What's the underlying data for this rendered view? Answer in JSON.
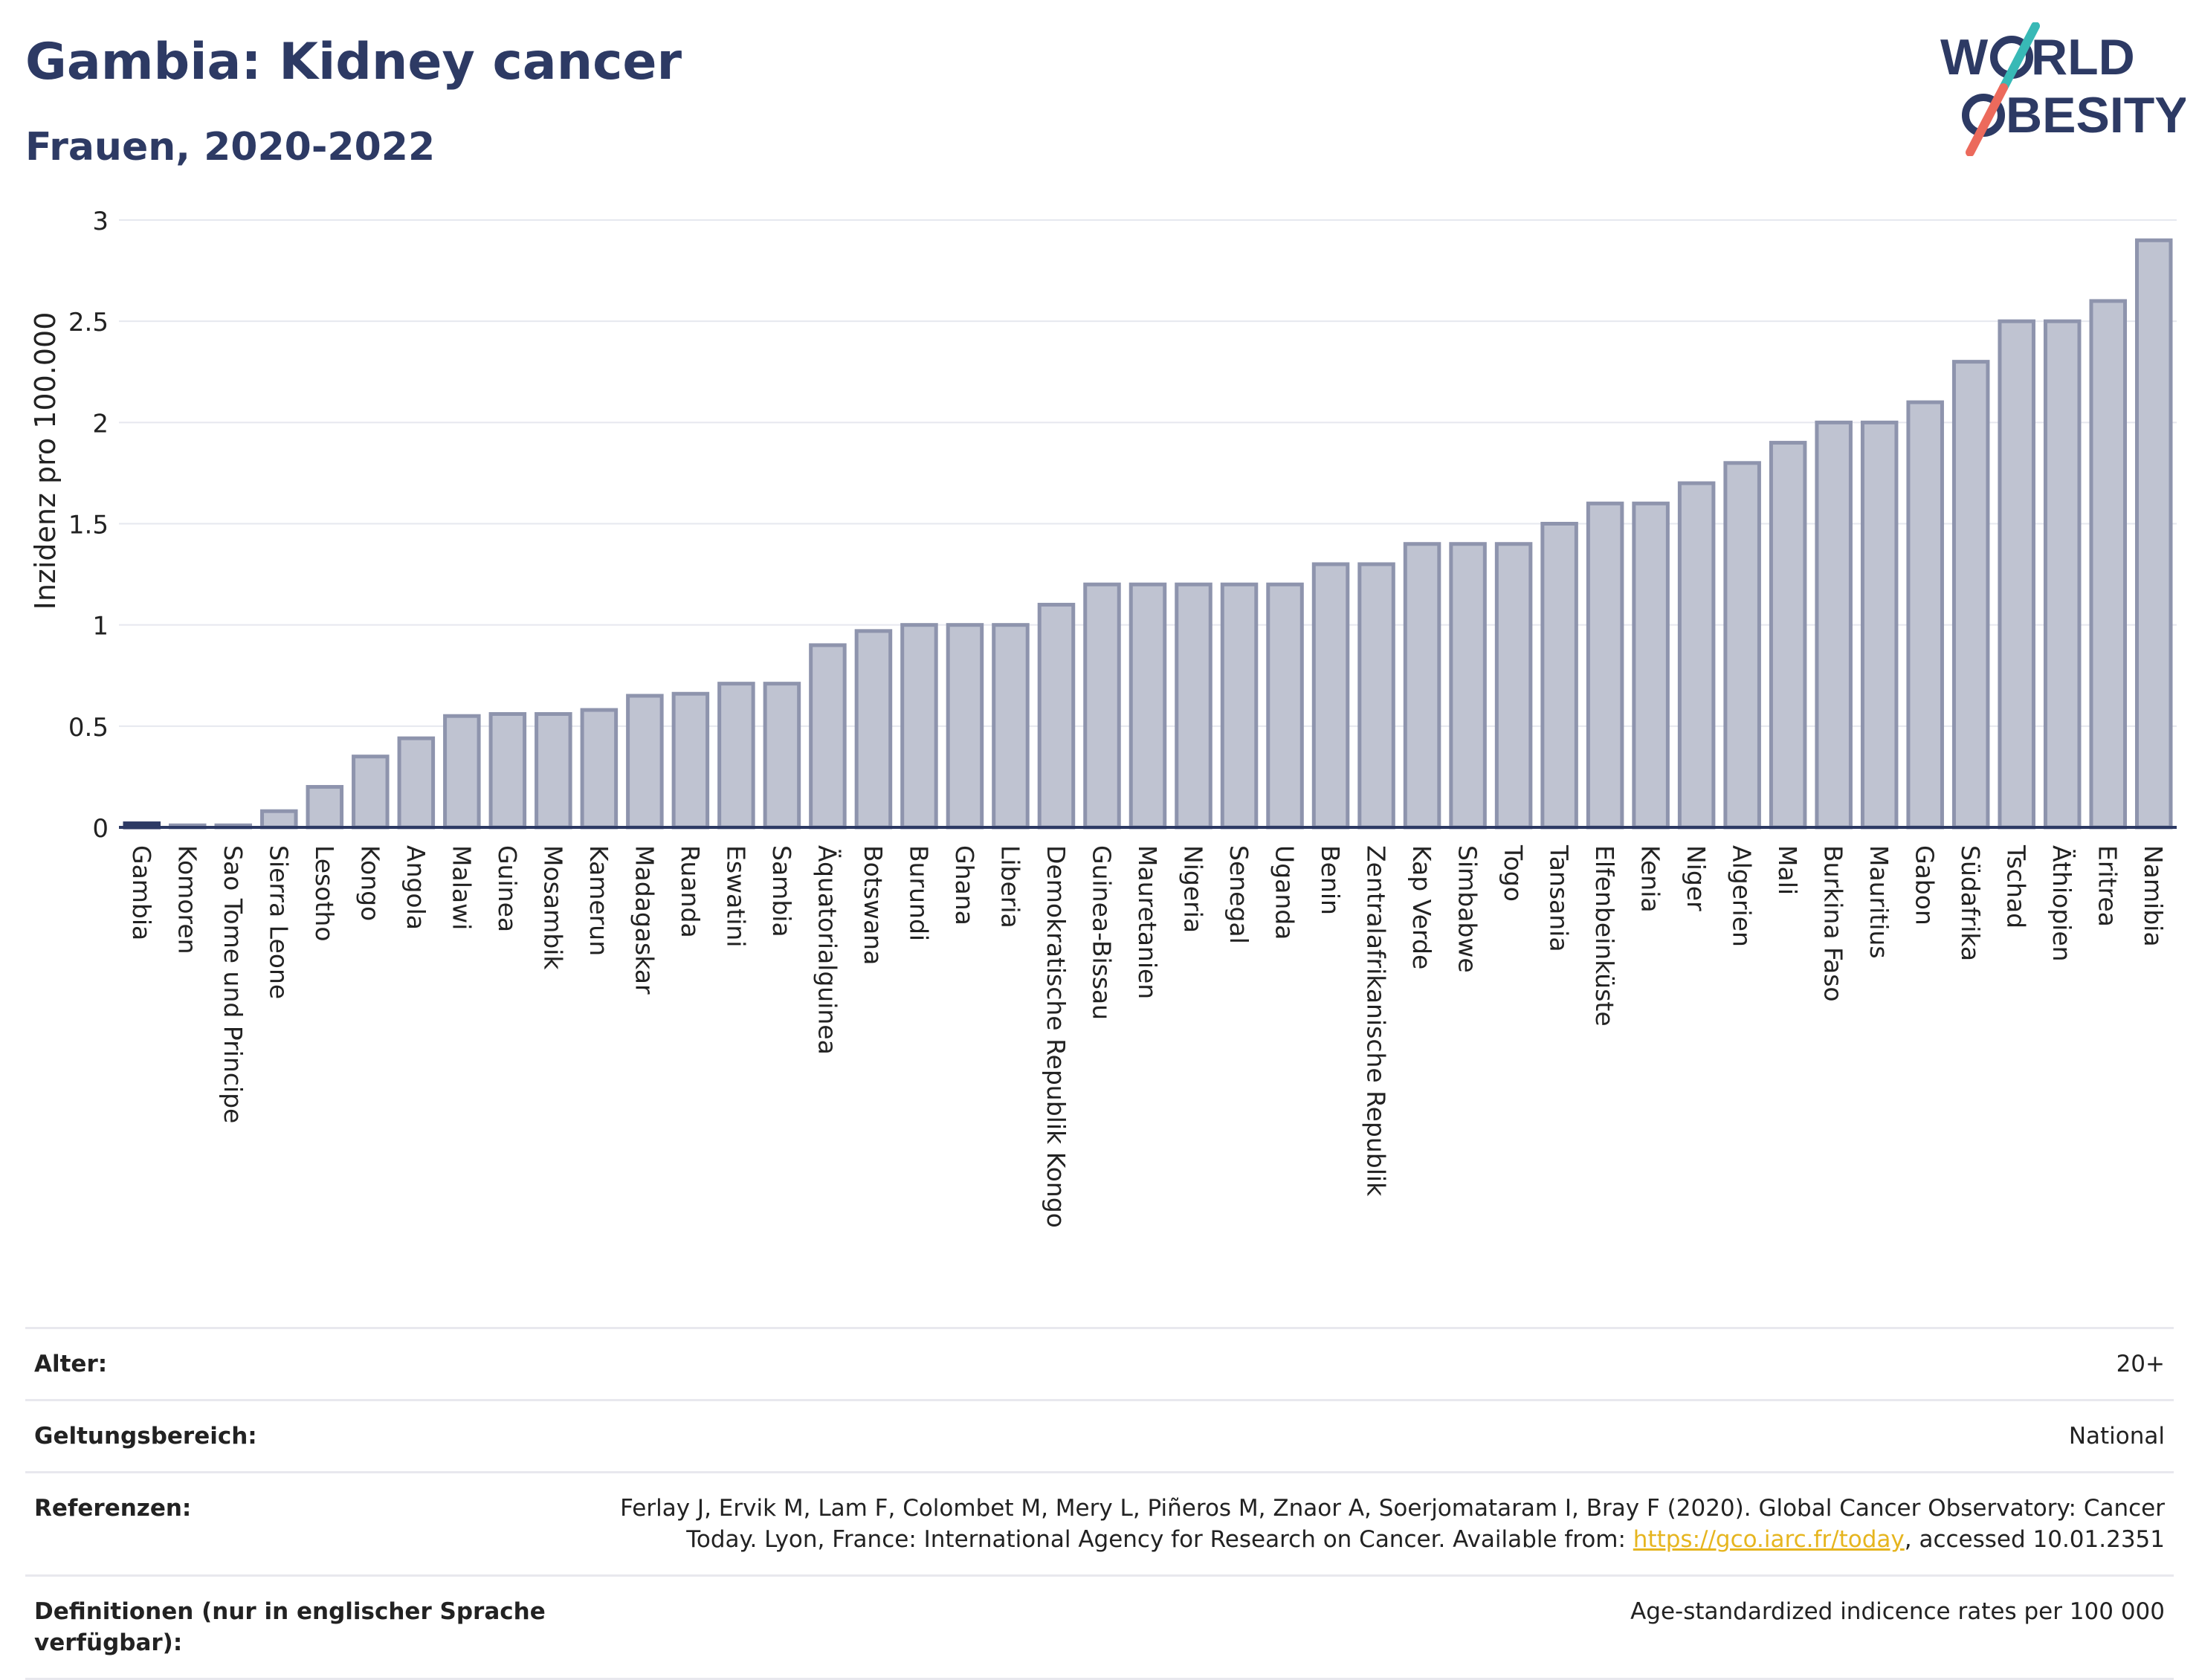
{
  "header": {
    "title": "Gambia: Kidney cancer",
    "subtitle": "Frauen, 2020-2022"
  },
  "logo": {
    "line1_a": "W",
    "line1_b": "RLD",
    "line2_b": "BESITY"
  },
  "colors": {
    "bar_fill": "#bfc3d1",
    "bar_stroke": "#8e94ad",
    "highlight": "#2d3a64",
    "title": "#2d3a64",
    "link": "#e6b51f",
    "logo_teal": "#38b9b6",
    "logo_red": "#ec6a5c"
  },
  "chart_data": {
    "type": "bar",
    "ylabel": "Inzidenz pro 100.000",
    "ylim": [
      0,
      3
    ],
    "yticks": [
      0,
      0.5,
      1,
      1.5,
      2,
      2.5,
      3
    ],
    "ytick_labels": [
      "0",
      "0.5",
      "1",
      "1.5",
      "2",
      "2.5",
      "3"
    ],
    "highlight": "Gambia",
    "grid": true,
    "categories": [
      "Gambia",
      "Komoren",
      "Sao Tome und Principe",
      "Sierra Leone",
      "Lesotho",
      "Kongo",
      "Angola",
      "Malawi",
      "Guinea",
      "Mosambik",
      "Kamerun",
      "Madagaskar",
      "Ruanda",
      "Eswatini",
      "Sambia",
      "Äquatorialguinea",
      "Botswana",
      "Burundi",
      "Ghana",
      "Liberia",
      "Demokratische Republik Kongo",
      "Guinea-Bissau",
      "Mauretanien",
      "Nigeria",
      "Senegal",
      "Uganda",
      "Benin",
      "Zentralafrikanische Republik",
      "Kap Verde",
      "Simbabwe",
      "Togo",
      "Tansania",
      "Elfenbeinküste",
      "Kenia",
      "Niger",
      "Algerien",
      "Mali",
      "Burkina Faso",
      "Mauritius",
      "Gabon",
      "Südafrika",
      "Tschad",
      "Äthiopien",
      "Eritrea",
      "Namibia"
    ],
    "values": [
      0.02,
      0.01,
      0.01,
      0.08,
      0.2,
      0.35,
      0.44,
      0.55,
      0.56,
      0.56,
      0.58,
      0.65,
      0.66,
      0.71,
      0.71,
      0.9,
      0.97,
      1.0,
      1.0,
      1.0,
      1.1,
      1.2,
      1.2,
      1.2,
      1.2,
      1.2,
      1.3,
      1.3,
      1.4,
      1.4,
      1.4,
      1.5,
      1.6,
      1.6,
      1.7,
      1.8,
      1.9,
      2.0,
      2.0,
      2.1,
      2.3,
      2.5,
      2.5,
      2.6,
      2.9
    ]
  },
  "meta": [
    {
      "label": "Alter:",
      "value": "20+"
    },
    {
      "label": "Geltungsbereich:",
      "value": "National"
    },
    {
      "label": "Referenzen:",
      "value_pre": "Ferlay J, Ervik M, Lam F, Colombet M, Mery L, Piñeros M, Znaor A, Soerjomataram I, Bray F (2020). Global Cancer Observatory: Cancer Today. Lyon, France: International Agency for Research on Cancer. Available from: ",
      "link": "https://gco.iarc.fr/today",
      "value_post": ", accessed 10.01.2351"
    },
    {
      "label": "Definitionen (nur in englischer Sprache verfügbar):",
      "value": "Age-standardized indicence rates per 100 000"
    }
  ]
}
